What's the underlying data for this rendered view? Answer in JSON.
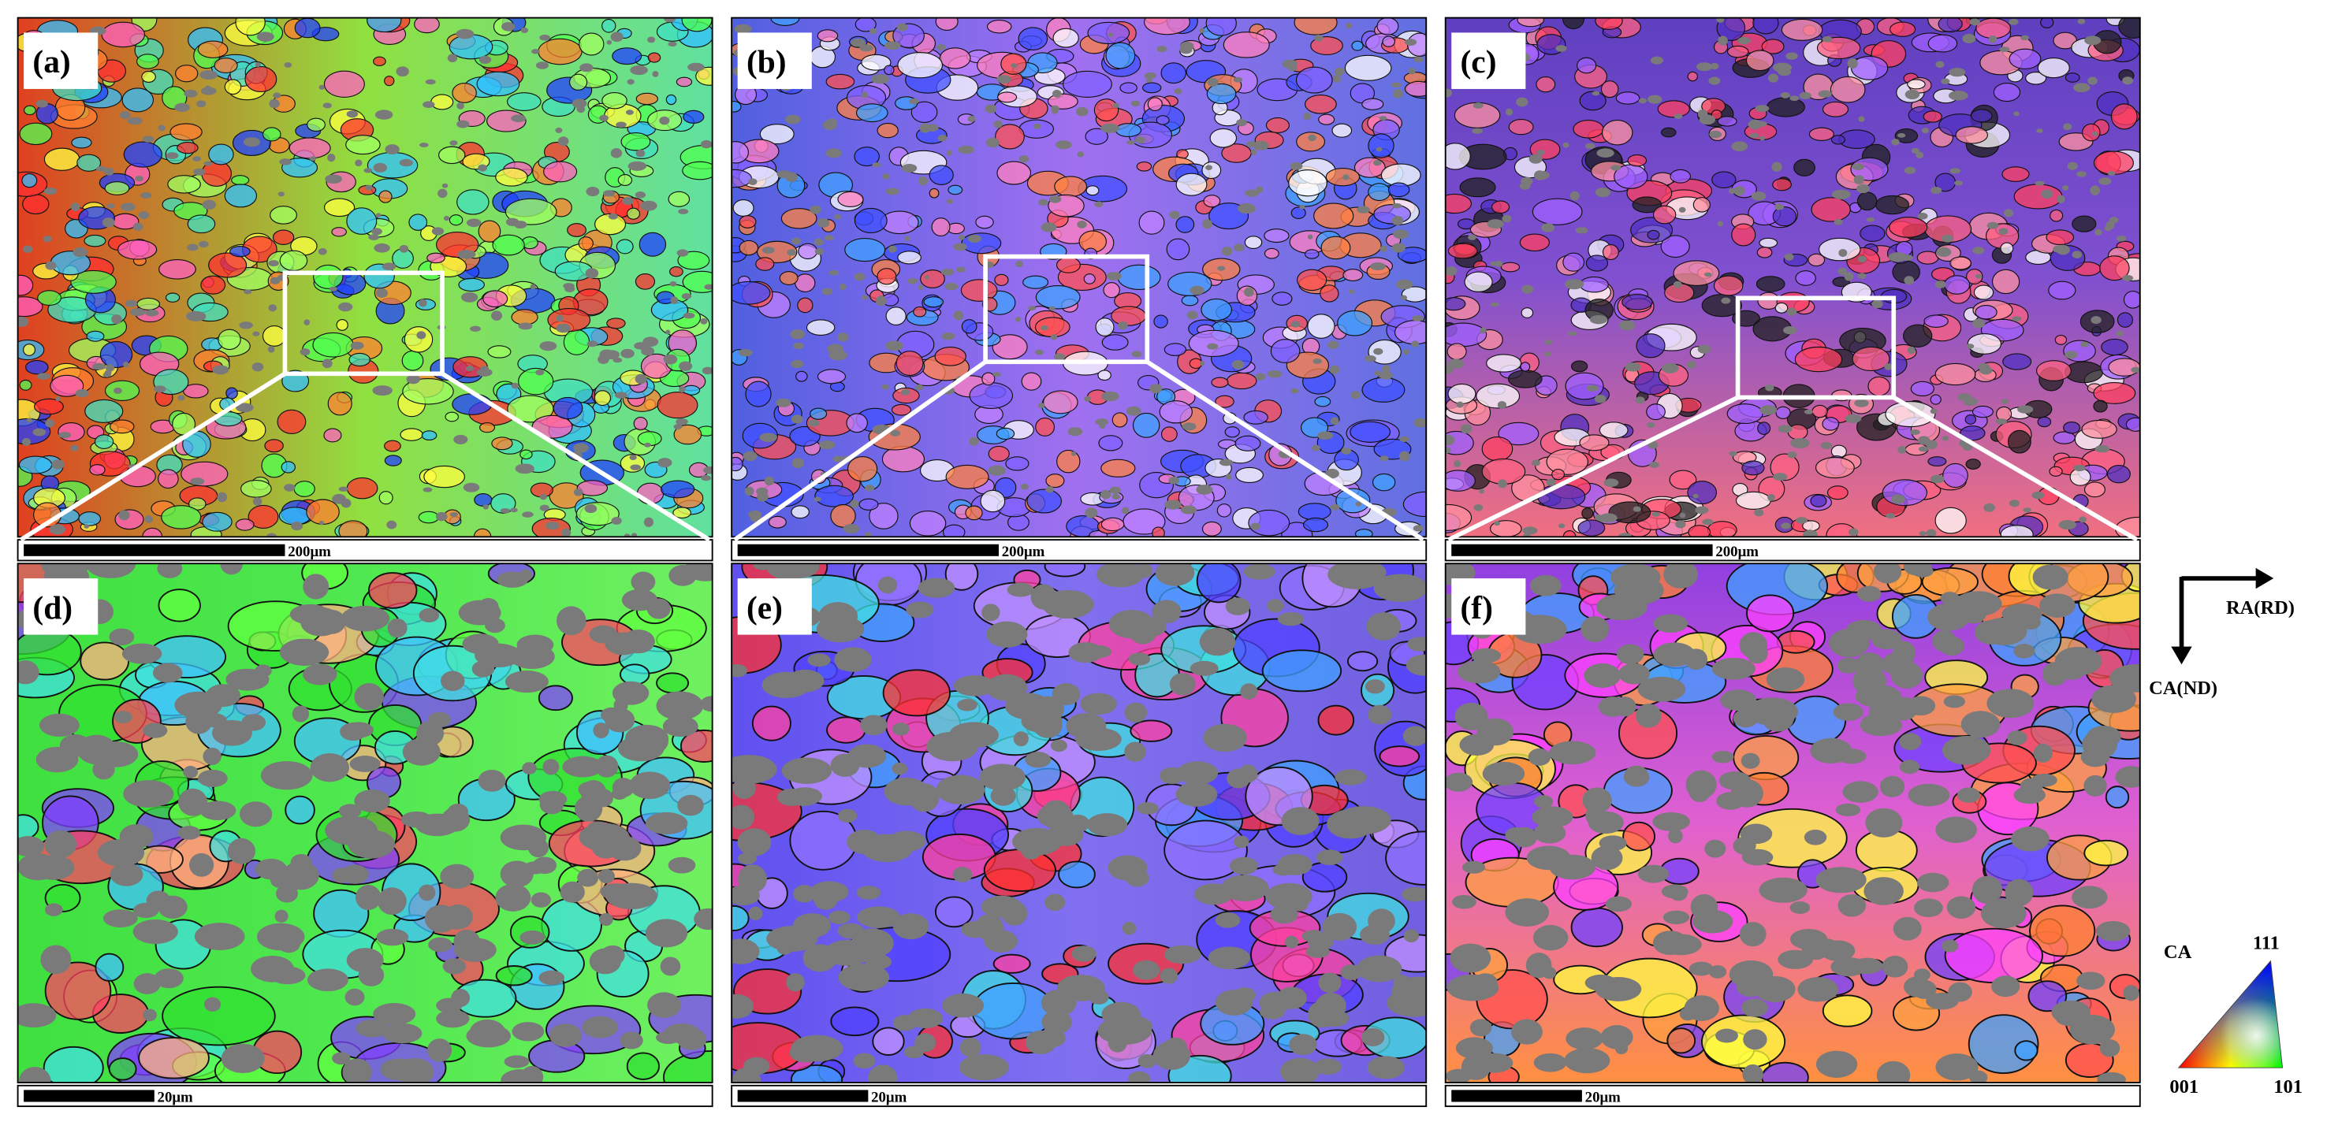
{
  "panels": [
    {
      "label": "(a)",
      "scale_bar": "200μm"
    },
    {
      "label": "(b)",
      "scale_bar": "200μm"
    },
    {
      "label": "(c)",
      "scale_bar": "200μm"
    },
    {
      "label": "(d)",
      "scale_bar": "20μm"
    },
    {
      "label": "(e)",
      "scale_bar": "20μm"
    },
    {
      "label": "(f)",
      "scale_bar": "20μm"
    }
  ],
  "axes": {
    "horizontal": "RA(RD)",
    "vertical": "CA(ND)"
  },
  "ipf_key": {
    "title": "CA",
    "corners": [
      "111",
      "001",
      "101"
    ]
  }
}
